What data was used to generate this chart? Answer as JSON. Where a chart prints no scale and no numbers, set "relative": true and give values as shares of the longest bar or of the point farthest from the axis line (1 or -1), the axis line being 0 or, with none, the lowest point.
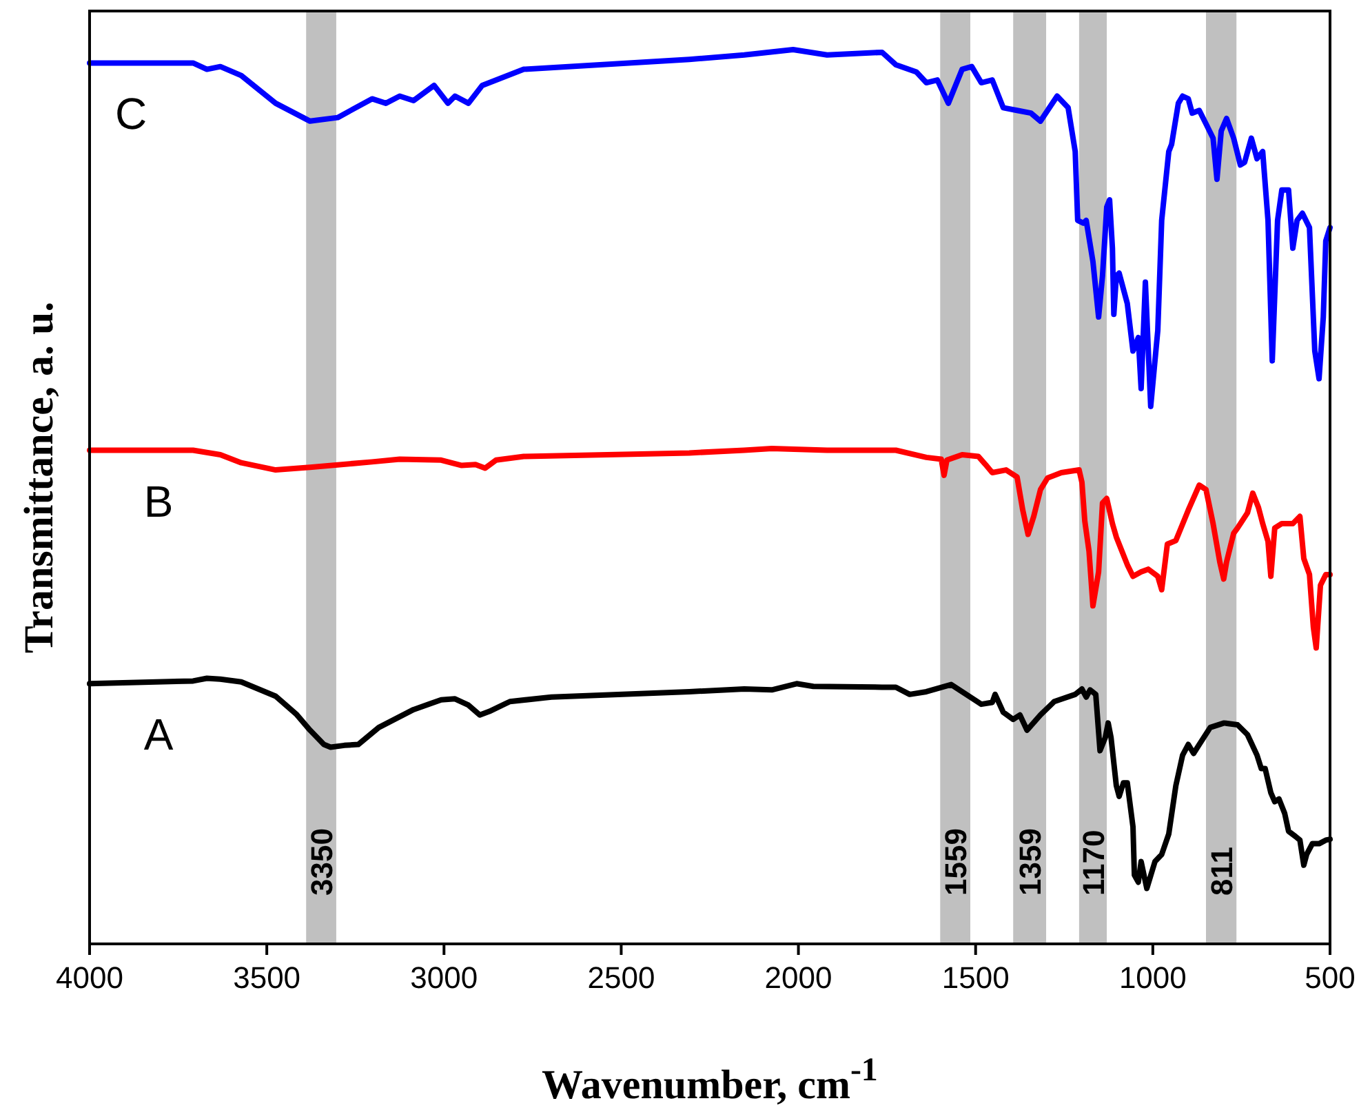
{
  "chart_data": {
    "type": "line",
    "relative": true,
    "xlabel": "Wavenumber, cm$^{-1}$",
    "ylabel": "Transmittance, a. u.",
    "xlim": [
      4000,
      500
    ],
    "xticks": [
      4000,
      3500,
      3000,
      2500,
      2000,
      1500,
      1000,
      500
    ],
    "legend": false,
    "grid": false,
    "tick_labels": "x",
    "line_style": "solid",
    "marker": "none",
    "series": [
      {
        "name": "A",
        "color": "#000000",
        "x": [
          4000,
          3708,
          3669,
          3631,
          3572,
          3475,
          3417,
          3378,
          3339,
          3320,
          3281,
          3242,
          3184,
          3086,
          3008,
          2969,
          2931,
          2899,
          2872,
          2814,
          2697,
          2308,
          2153,
          2075,
          2005,
          1958,
          1764,
          1725,
          1686,
          1639,
          1569,
          1484,
          1453,
          1445,
          1422,
          1394,
          1375,
          1355,
          1317,
          1278,
          1219,
          1200,
          1188,
          1177,
          1161,
          1149,
          1134,
          1126,
          1118,
          1103,
          1095,
          1083,
          1072,
          1056,
          1052,
          1041,
          1033,
          1017,
          994,
          975,
          955,
          935,
          916,
          900,
          885,
          869,
          838,
          799,
          761,
          733,
          706,
          694,
          683,
          667,
          656,
          644,
          628,
          617,
          597,
          585,
          574,
          566,
          550,
          531,
          512,
          500
        ],
        "values": [
          0.291,
          0.294,
          0.297,
          0.296,
          0.293,
          0.277,
          0.257,
          0.239,
          0.223,
          0.22,
          0.222,
          0.223,
          0.242,
          0.262,
          0.273,
          0.274,
          0.267,
          0.256,
          0.26,
          0.271,
          0.276,
          0.282,
          0.285,
          0.284,
          0.291,
          0.288,
          0.287,
          0.287,
          0.279,
          0.282,
          0.29,
          0.268,
          0.27,
          0.279,
          0.259,
          0.251,
          0.256,
          0.239,
          0.256,
          0.271,
          0.279,
          0.285,
          0.276,
          0.284,
          0.279,
          0.216,
          0.231,
          0.247,
          0.231,
          0.177,
          0.165,
          0.18,
          0.18,
          0.131,
          0.077,
          0.069,
          0.092,
          0.062,
          0.092,
          0.1,
          0.123,
          0.177,
          0.211,
          0.223,
          0.213,
          0.223,
          0.242,
          0.247,
          0.245,
          0.234,
          0.211,
          0.196,
          0.196,
          0.169,
          0.159,
          0.162,
          0.146,
          0.126,
          0.12,
          0.116,
          0.088,
          0.1,
          0.112,
          0.112,
          0.116,
          0.117
        ]
      },
      {
        "name": "B",
        "color": "#ff0000",
        "x": [
          4000,
          3708,
          3631,
          3572,
          3475,
          3378,
          3203,
          3125,
          3008,
          2950,
          2911,
          2884,
          2853,
          2775,
          2308,
          2153,
          2075,
          1919,
          1764,
          1725,
          1639,
          1597,
          1589,
          1581,
          1538,
          1492,
          1472,
          1453,
          1414,
          1383,
          1367,
          1352,
          1336,
          1317,
          1297,
          1258,
          1208,
          1200,
          1192,
          1180,
          1169,
          1153,
          1142,
          1130,
          1114,
          1103,
          1087,
          1072,
          1056,
          1033,
          1013,
          986,
          975,
          959,
          935,
          900,
          869,
          850,
          830,
          811,
          800,
          792,
          772,
          761,
          733,
          718,
          702,
          690,
          675,
          667,
          656,
          636,
          605,
          585,
          574,
          558,
          547,
          539,
          527,
          512,
          500
        ],
        "values": [
          0.552,
          0.552,
          0.547,
          0.538,
          0.53,
          0.533,
          0.539,
          0.542,
          0.541,
          0.535,
          0.536,
          0.532,
          0.541,
          0.545,
          0.549,
          0.552,
          0.554,
          0.552,
          0.552,
          0.552,
          0.544,
          0.542,
          0.524,
          0.541,
          0.547,
          0.545,
          0.536,
          0.527,
          0.53,
          0.522,
          0.485,
          0.458,
          0.478,
          0.508,
          0.521,
          0.527,
          0.53,
          0.516,
          0.473,
          0.439,
          0.378,
          0.416,
          0.493,
          0.498,
          0.47,
          0.455,
          0.439,
          0.424,
          0.411,
          0.416,
          0.419,
          0.411,
          0.396,
          0.447,
          0.451,
          0.485,
          0.513,
          0.508,
          0.47,
          0.427,
          0.408,
          0.427,
          0.459,
          0.465,
          0.482,
          0.504,
          0.488,
          0.47,
          0.45,
          0.411,
          0.465,
          0.47,
          0.47,
          0.478,
          0.431,
          0.413,
          0.354,
          0.331,
          0.401,
          0.413,
          0.413
        ]
      },
      {
        "name": "C",
        "color": "#0000ff",
        "x": [
          4000,
          3708,
          3669,
          3631,
          3572,
          3475,
          3378,
          3300,
          3203,
          3164,
          3125,
          3086,
          3028,
          2989,
          2969,
          2931,
          2892,
          2775,
          2308,
          2153,
          2015,
          1919,
          1764,
          1725,
          1667,
          1639,
          1608,
          1577,
          1538,
          1511,
          1484,
          1453,
          1422,
          1383,
          1344,
          1317,
          1270,
          1239,
          1219,
          1212,
          1196,
          1188,
          1169,
          1153,
          1142,
          1130,
          1122,
          1114,
          1110,
          1103,
          1095,
          1072,
          1056,
          1041,
          1033,
          1021,
          1006,
          986,
          975,
          955,
          947,
          928,
          916,
          900,
          889,
          869,
          850,
          830,
          819,
          807,
          792,
          772,
          753,
          741,
          722,
          706,
          690,
          675,
          663,
          648,
          636,
          617,
          605,
          593,
          578,
          558,
          543,
          531,
          519,
          512,
          500
        ],
        "values": [
          0.985,
          0.985,
          0.978,
          0.981,
          0.971,
          0.94,
          0.92,
          0.924,
          0.945,
          0.94,
          0.948,
          0.943,
          0.96,
          0.94,
          0.948,
          0.94,
          0.96,
          0.978,
          0.989,
          0.994,
          1.0,
          0.994,
          0.997,
          0.983,
          0.975,
          0.963,
          0.966,
          0.94,
          0.978,
          0.981,
          0.963,
          0.966,
          0.935,
          0.932,
          0.929,
          0.92,
          0.948,
          0.935,
          0.886,
          0.809,
          0.806,
          0.809,
          0.763,
          0.701,
          0.747,
          0.824,
          0.832,
          0.778,
          0.704,
          0.747,
          0.75,
          0.716,
          0.663,
          0.678,
          0.621,
          0.74,
          0.601,
          0.686,
          0.809,
          0.886,
          0.894,
          0.94,
          0.948,
          0.945,
          0.929,
          0.932,
          0.917,
          0.901,
          0.855,
          0.909,
          0.923,
          0.901,
          0.871,
          0.874,
          0.901,
          0.878,
          0.886,
          0.809,
          0.652,
          0.809,
          0.843,
          0.843,
          0.778,
          0.809,
          0.817,
          0.801,
          0.663,
          0.632,
          0.701,
          0.786,
          0.801
        ]
      }
    ],
    "bands": [
      {
        "axis": "x",
        "from": 3389,
        "to": 3304,
        "label": "3350",
        "color": "#c0c0c0"
      },
      {
        "axis": "x",
        "from": 1600,
        "to": 1515,
        "label": "1559",
        "color": "#c0c0c0"
      },
      {
        "axis": "x",
        "from": 1394,
        "to": 1301,
        "label": "1359",
        "color": "#c0c0c0"
      },
      {
        "axis": "x",
        "from": 1208,
        "to": 1130,
        "label": "1170",
        "color": "#c0c0c0"
      },
      {
        "axis": "x",
        "from": 850,
        "to": 764,
        "label": "811",
        "color": "#c0c0c0"
      }
    ]
  }
}
